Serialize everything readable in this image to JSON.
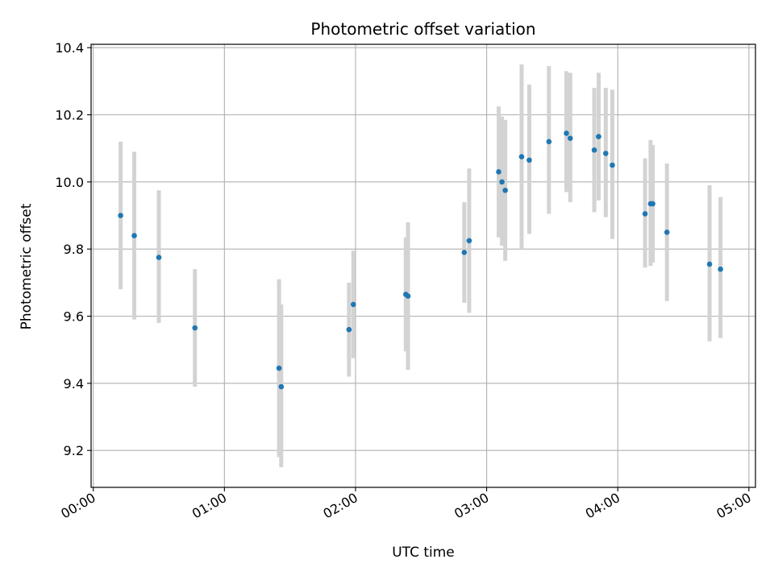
{
  "chart_data": {
    "type": "scatter",
    "title": "Photometric offset variation",
    "xlabel": "UTC time",
    "ylabel": "Photometric offset",
    "xlim": [
      "23:59",
      "05:03"
    ],
    "ylim": [
      9.09,
      10.41
    ],
    "x_ticks": [
      "00:00",
      "01:00",
      "02:00",
      "03:00",
      "04:00",
      "05:00"
    ],
    "y_ticks": [
      9.2,
      9.4,
      9.6,
      9.8,
      10.0,
      10.2,
      10.4
    ],
    "grid": true,
    "colors": {
      "point": "#1f77b4",
      "errorbar": "#d3d3d3",
      "grid": "#b0b0b0"
    },
    "points": [
      {
        "x": "00:12:30",
        "y": 9.9,
        "yerr_low": 9.68,
        "yerr_high": 10.12
      },
      {
        "x": "00:18:45",
        "y": 9.84,
        "yerr_low": 9.59,
        "yerr_high": 10.09
      },
      {
        "x": "00:30:00",
        "y": 9.775,
        "yerr_low": 9.58,
        "yerr_high": 9.975
      },
      {
        "x": "00:46:30",
        "y": 9.565,
        "yerr_low": 9.39,
        "yerr_high": 9.74
      },
      {
        "x": "01:25:00",
        "y": 9.445,
        "yerr_low": 9.18,
        "yerr_high": 9.71
      },
      {
        "x": "01:26:00",
        "y": 9.39,
        "yerr_low": 9.15,
        "yerr_high": 9.635
      },
      {
        "x": "01:57:00",
        "y": 9.56,
        "yerr_low": 9.42,
        "yerr_high": 9.7
      },
      {
        "x": "01:59:00",
        "y": 9.635,
        "yerr_low": 9.475,
        "yerr_high": 9.795
      },
      {
        "x": "02:23:00",
        "y": 9.665,
        "yerr_low": 9.495,
        "yerr_high": 9.835
      },
      {
        "x": "02:24:00",
        "y": 9.66,
        "yerr_low": 9.44,
        "yerr_high": 9.88
      },
      {
        "x": "02:49:45",
        "y": 9.79,
        "yerr_low": 9.64,
        "yerr_high": 9.94
      },
      {
        "x": "02:52:00",
        "y": 9.825,
        "yerr_low": 9.61,
        "yerr_high": 10.04
      },
      {
        "x": "03:05:30",
        "y": 10.03,
        "yerr_low": 9.835,
        "yerr_high": 10.225
      },
      {
        "x": "03:07:00",
        "y": 10.0,
        "yerr_low": 9.81,
        "yerr_high": 10.195
      },
      {
        "x": "03:08:30",
        "y": 9.975,
        "yerr_low": 9.765,
        "yerr_high": 10.185
      },
      {
        "x": "03:16:00",
        "y": 10.075,
        "yerr_low": 9.8,
        "yerr_high": 10.35
      },
      {
        "x": "03:19:30",
        "y": 10.065,
        "yerr_low": 9.845,
        "yerr_high": 10.29
      },
      {
        "x": "03:28:30",
        "y": 10.12,
        "yerr_low": 9.905,
        "yerr_high": 10.345
      },
      {
        "x": "03:36:30",
        "y": 10.145,
        "yerr_low": 9.97,
        "yerr_high": 10.33
      },
      {
        "x": "03:38:15",
        "y": 10.13,
        "yerr_low": 9.94,
        "yerr_high": 10.325
      },
      {
        "x": "03:49:15",
        "y": 10.095,
        "yerr_low": 9.91,
        "yerr_high": 10.28
      },
      {
        "x": "03:51:15",
        "y": 10.135,
        "yerr_low": 9.945,
        "yerr_high": 10.325
      },
      {
        "x": "03:54:30",
        "y": 10.085,
        "yerr_low": 9.895,
        "yerr_high": 10.28
      },
      {
        "x": "03:57:30",
        "y": 10.05,
        "yerr_low": 9.83,
        "yerr_high": 10.275
      },
      {
        "x": "04:12:30",
        "y": 9.905,
        "yerr_low": 9.745,
        "yerr_high": 10.07
      },
      {
        "x": "04:15:00",
        "y": 9.935,
        "yerr_low": 9.75,
        "yerr_high": 10.125
      },
      {
        "x": "04:16:00",
        "y": 9.935,
        "yerr_low": 9.76,
        "yerr_high": 10.11
      },
      {
        "x": "04:22:30",
        "y": 9.85,
        "yerr_low": 9.645,
        "yerr_high": 10.055
      },
      {
        "x": "04:42:00",
        "y": 9.755,
        "yerr_low": 9.525,
        "yerr_high": 9.99
      },
      {
        "x": "04:47:00",
        "y": 9.74,
        "yerr_low": 9.535,
        "yerr_high": 9.955
      }
    ]
  }
}
